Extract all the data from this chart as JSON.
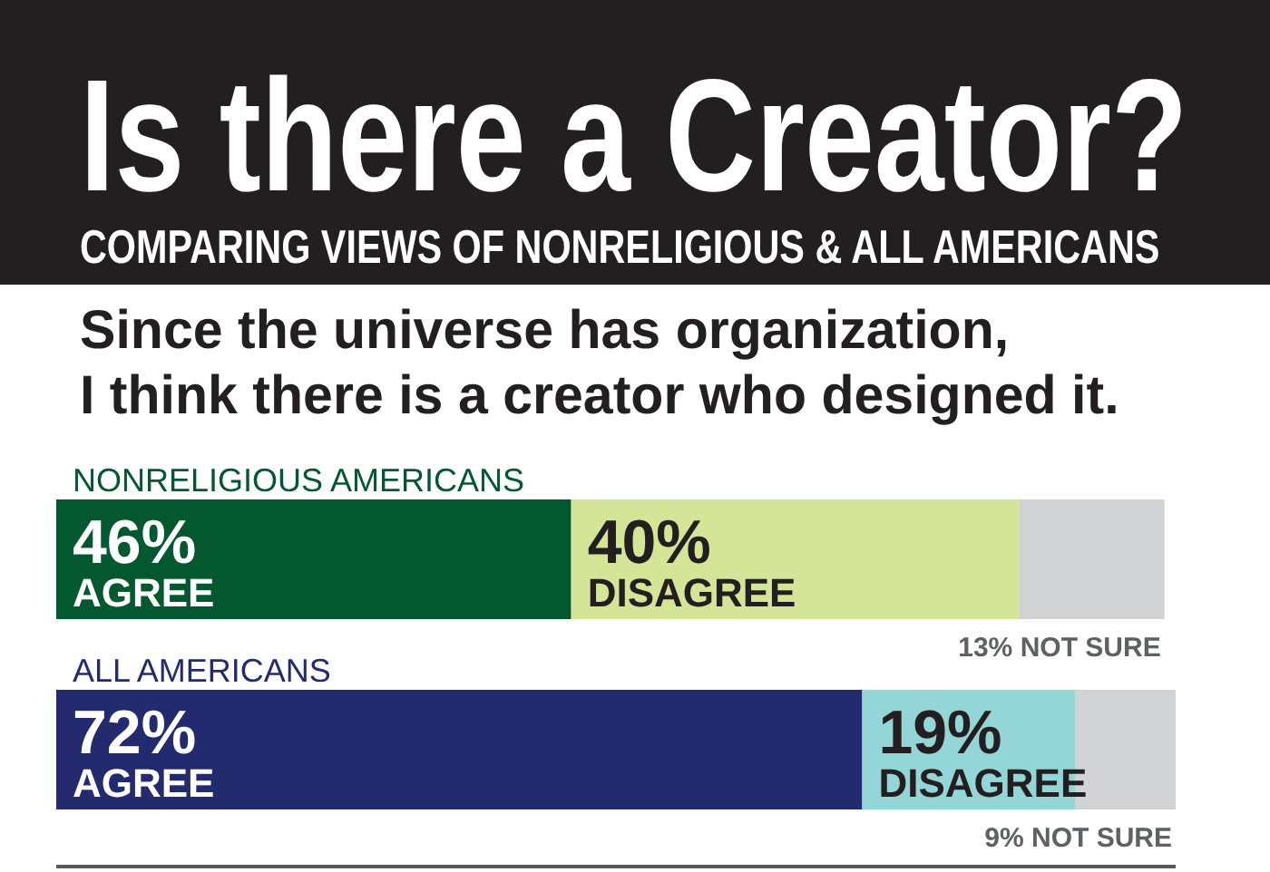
{
  "chart_data": {
    "type": "bar",
    "orientation": "horizontal",
    "stacked": true,
    "title": "Is there a Creator?",
    "subtitle": "COMPARING VIEWS OF NONRELIGIOUS & ALL AMERICANS",
    "annotations": [
      "Since the universe has organization,\nI think there is a creator who designed it."
    ],
    "categories": [
      "NONRELIGIOUS AMERICANS",
      "ALL AMERICANS"
    ],
    "xlim": [
      0,
      100
    ],
    "series": [
      {
        "name": "AGREE",
        "colors": [
          "#04582f",
          "#232b6e"
        ],
        "values": [
          46,
          72
        ],
        "value_labels": [
          "46%",
          "72%"
        ]
      },
      {
        "name": "DISAGREE",
        "colors": [
          "#d4e598",
          "#94d5d7"
        ],
        "values": [
          40,
          19
        ],
        "value_labels": [
          "40%",
          "19%"
        ]
      },
      {
        "name": "NOT SURE",
        "color": "#d1d2d4",
        "values": [
          13,
          9
        ],
        "value_labels": [
          "13%",
          "9%"
        ]
      }
    ]
  }
}
